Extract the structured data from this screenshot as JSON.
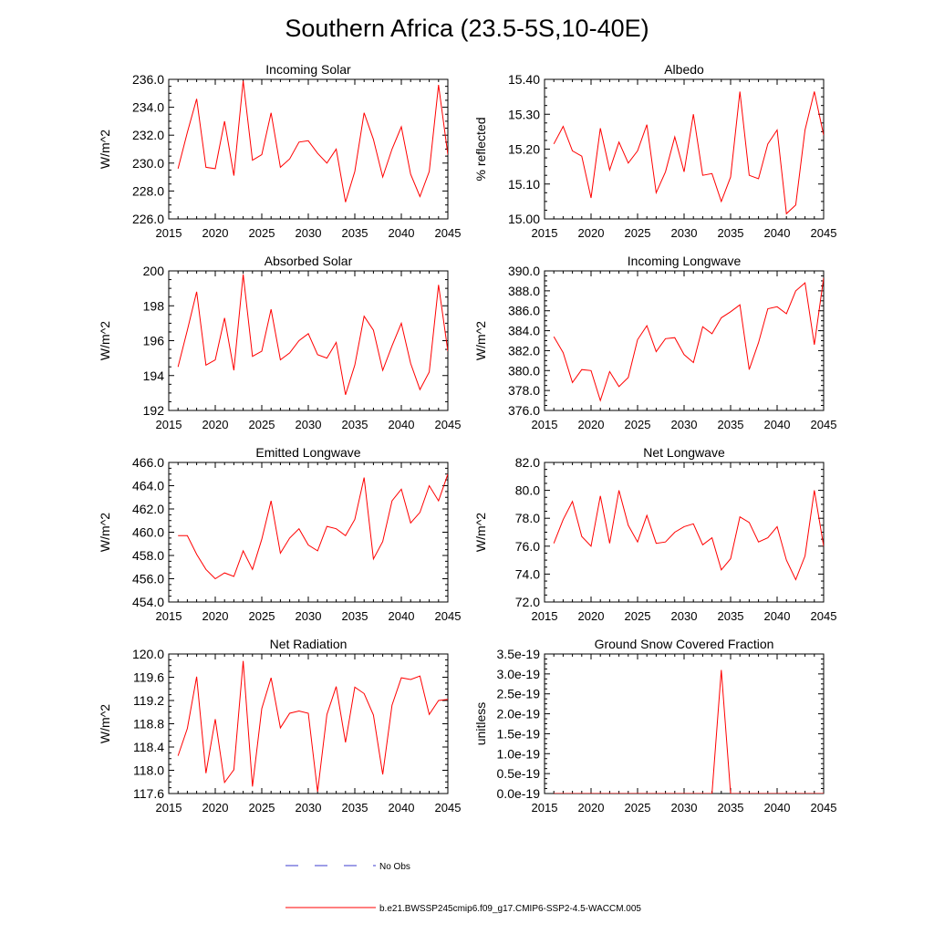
{
  "title": "Southern Africa (23.5-5S,10-40E)",
  "colors": {
    "model": "#ff0000",
    "obs": "#3b3bcf",
    "axis": "#000000"
  },
  "legend": {
    "obs_label": "No Obs",
    "model_label": "b.e21.BWSSP245cmip6.f09_g17.CMIP6-SSP2-4.5-WACCM.005"
  },
  "chart_data": [
    {
      "type": "line",
      "title": "Incoming Solar",
      "ylabel": "W/m^2",
      "xlim": [
        2015,
        2045
      ],
      "ylim": [
        226,
        236
      ],
      "xticks": [
        2015,
        2020,
        2025,
        2030,
        2035,
        2040,
        2045
      ],
      "yticks": [
        226,
        228,
        230,
        232,
        234,
        236
      ],
      "ytick_labels": [
        "226.0",
        "228.0",
        "230.0",
        "232.0",
        "234.0",
        "236.0"
      ],
      "x": [
        2016,
        2017,
        2018,
        2019,
        2020,
        2021,
        2022,
        2023,
        2024,
        2025,
        2026,
        2027,
        2028,
        2029,
        2030,
        2031,
        2032,
        2033,
        2034,
        2035,
        2036,
        2037,
        2038,
        2039,
        2040,
        2041,
        2042,
        2043,
        2044,
        2045
      ],
      "series": [
        {
          "name": "b.e21.BWSSP245cmip6.f09_g17.CMIP6-SSP2-4.5-WACCM.005",
          "values": [
            229.6,
            232.2,
            234.6,
            229.7,
            229.6,
            233.0,
            229.1,
            235.9,
            230.2,
            230.6,
            233.6,
            229.7,
            230.3,
            231.5,
            231.6,
            230.7,
            230.0,
            231.0,
            227.2,
            229.4,
            233.6,
            231.7,
            229.0,
            231.0,
            232.6,
            229.2,
            227.6,
            229.4,
            235.6,
            230.6
          ]
        }
      ]
    },
    {
      "type": "line",
      "title": "Albedo",
      "ylabel": "% reflected",
      "xlim": [
        2015,
        2045
      ],
      "ylim": [
        15.0,
        15.4
      ],
      "xticks": [
        2015,
        2020,
        2025,
        2030,
        2035,
        2040,
        2045
      ],
      "yticks": [
        15.0,
        15.1,
        15.2,
        15.3,
        15.4
      ],
      "ytick_labels": [
        "15.00",
        "15.10",
        "15.20",
        "15.30",
        "15.40"
      ],
      "x": [
        2016,
        2017,
        2018,
        2019,
        2020,
        2021,
        2022,
        2023,
        2024,
        2025,
        2026,
        2027,
        2028,
        2029,
        2030,
        2031,
        2032,
        2033,
        2034,
        2035,
        2036,
        2037,
        2038,
        2039,
        2040,
        2041,
        2042,
        2043,
        2044,
        2045
      ],
      "series": [
        {
          "name": "b.e21.BWSSP245cmip6.f09_g17.CMIP6-SSP2-4.5-WACCM.005",
          "values": [
            15.215,
            15.265,
            15.195,
            15.18,
            15.06,
            15.26,
            15.14,
            15.22,
            15.16,
            15.195,
            15.27,
            15.075,
            15.135,
            15.235,
            15.135,
            15.3,
            15.125,
            15.13,
            15.05,
            15.12,
            15.365,
            15.125,
            15.115,
            15.215,
            15.255,
            15.015,
            15.04,
            15.255,
            15.365,
            15.24
          ]
        }
      ]
    },
    {
      "type": "line",
      "title": "Absorbed Solar",
      "ylabel": "W/m^2",
      "xlim": [
        2015,
        2045
      ],
      "ylim": [
        192,
        200
      ],
      "xticks": [
        2015,
        2020,
        2025,
        2030,
        2035,
        2040,
        2045
      ],
      "yticks": [
        192,
        194,
        196,
        198,
        200
      ],
      "ytick_labels": [
        "192",
        "194",
        "196",
        "198",
        "200"
      ],
      "x": [
        2016,
        2017,
        2018,
        2019,
        2020,
        2021,
        2022,
        2023,
        2024,
        2025,
        2026,
        2027,
        2028,
        2029,
        2030,
        2031,
        2032,
        2033,
        2034,
        2035,
        2036,
        2037,
        2038,
        2039,
        2040,
        2041,
        2042,
        2043,
        2044,
        2045
      ],
      "series": [
        {
          "name": "b.e21.BWSSP245cmip6.f09_g17.CMIP6-SSP2-4.5-WACCM.005",
          "values": [
            194.5,
            196.6,
            198.8,
            194.6,
            194.9,
            197.3,
            194.3,
            199.8,
            195.1,
            195.4,
            197.8,
            194.9,
            195.3,
            196.0,
            196.4,
            195.2,
            195.0,
            195.9,
            192.9,
            194.6,
            197.4,
            196.6,
            194.3,
            195.7,
            197.0,
            194.7,
            193.2,
            194.2,
            199.2,
            195.4
          ]
        }
      ]
    },
    {
      "type": "line",
      "title": "Incoming Longwave",
      "ylabel": "W/m^2",
      "xlim": [
        2015,
        2045
      ],
      "ylim": [
        376,
        390
      ],
      "xticks": [
        2015,
        2020,
        2025,
        2030,
        2035,
        2040,
        2045
      ],
      "yticks": [
        376,
        378,
        380,
        382,
        384,
        386,
        388,
        390
      ],
      "ytick_labels": [
        "376.0",
        "378.0",
        "380.0",
        "382.0",
        "384.0",
        "386.0",
        "388.0",
        "390.0"
      ],
      "x": [
        2016,
        2017,
        2018,
        2019,
        2020,
        2021,
        2022,
        2023,
        2024,
        2025,
        2026,
        2027,
        2028,
        2029,
        2030,
        2031,
        2032,
        2033,
        2034,
        2035,
        2036,
        2037,
        2038,
        2039,
        2040,
        2041,
        2042,
        2043,
        2044,
        2045
      ],
      "series": [
        {
          "name": "b.e21.BWSSP245cmip6.f09_g17.CMIP6-SSP2-4.5-WACCM.005",
          "values": [
            383.4,
            381.8,
            378.8,
            380.1,
            380.0,
            377.0,
            379.9,
            378.4,
            379.3,
            383.1,
            384.5,
            381.9,
            383.2,
            383.3,
            381.6,
            380.8,
            384.4,
            383.7,
            385.3,
            385.9,
            386.6,
            380.1,
            382.8,
            386.2,
            386.4,
            385.7,
            388.0,
            388.8,
            382.6,
            389.3
          ]
        }
      ]
    },
    {
      "type": "line",
      "title": "Emitted Longwave",
      "ylabel": "W/m^2",
      "xlim": [
        2015,
        2045
      ],
      "ylim": [
        454,
        466
      ],
      "xticks": [
        2015,
        2020,
        2025,
        2030,
        2035,
        2040,
        2045
      ],
      "yticks": [
        454,
        456,
        458,
        460,
        462,
        464,
        466
      ],
      "ytick_labels": [
        "454.0",
        "456.0",
        "458.0",
        "460.0",
        "462.0",
        "464.0",
        "466.0"
      ],
      "x": [
        2016,
        2017,
        2018,
        2019,
        2020,
        2021,
        2022,
        2023,
        2024,
        2025,
        2026,
        2027,
        2028,
        2029,
        2030,
        2031,
        2032,
        2033,
        2034,
        2035,
        2036,
        2037,
        2038,
        2039,
        2040,
        2041,
        2042,
        2043,
        2044,
        2045
      ],
      "series": [
        {
          "name": "b.e21.BWSSP245cmip6.f09_g17.CMIP6-SSP2-4.5-WACCM.005",
          "values": [
            459.7,
            459.7,
            458.1,
            456.8,
            456.0,
            456.5,
            456.2,
            458.4,
            456.8,
            459.4,
            462.7,
            458.2,
            459.5,
            460.3,
            458.9,
            458.4,
            460.5,
            460.3,
            459.7,
            461.1,
            464.7,
            457.7,
            459.2,
            462.7,
            463.7,
            460.8,
            461.7,
            464.0,
            462.7,
            465.0
          ]
        }
      ]
    },
    {
      "type": "line",
      "title": "Net Longwave",
      "ylabel": "W/m^2",
      "xlim": [
        2015,
        2045
      ],
      "ylim": [
        72,
        82
      ],
      "xticks": [
        2015,
        2020,
        2025,
        2030,
        2035,
        2040,
        2045
      ],
      "yticks": [
        72,
        74,
        76,
        78,
        80,
        82
      ],
      "ytick_labels": [
        "72.0",
        "74.0",
        "76.0",
        "78.0",
        "80.0",
        "82.0"
      ],
      "x": [
        2016,
        2017,
        2018,
        2019,
        2020,
        2021,
        2022,
        2023,
        2024,
        2025,
        2026,
        2027,
        2028,
        2029,
        2030,
        2031,
        2032,
        2033,
        2034,
        2035,
        2036,
        2037,
        2038,
        2039,
        2040,
        2041,
        2042,
        2043,
        2044,
        2045
      ],
      "series": [
        {
          "name": "b.e21.BWSSP245cmip6.f09_g17.CMIP6-SSP2-4.5-WACCM.005",
          "values": [
            76.2,
            77.9,
            79.2,
            76.7,
            76.0,
            79.6,
            76.2,
            80.0,
            77.5,
            76.3,
            78.2,
            76.2,
            76.3,
            77.0,
            77.4,
            77.6,
            76.1,
            76.6,
            74.3,
            75.1,
            78.1,
            77.7,
            76.3,
            76.6,
            77.4,
            75.0,
            73.6,
            75.3,
            80.0,
            76.0
          ]
        }
      ]
    },
    {
      "type": "line",
      "title": "Net Radiation",
      "ylabel": "W/m^2",
      "xlim": [
        2015,
        2045
      ],
      "ylim": [
        117.6,
        120.0
      ],
      "xticks": [
        2015,
        2020,
        2025,
        2030,
        2035,
        2040,
        2045
      ],
      "yticks": [
        117.6,
        118.0,
        118.4,
        118.8,
        119.2,
        119.6,
        120.0
      ],
      "ytick_labels": [
        "117.6",
        "118.0",
        "118.4",
        "118.8",
        "119.2",
        "119.6",
        "120.0"
      ],
      "x": [
        2016,
        2017,
        2018,
        2019,
        2020,
        2021,
        2022,
        2023,
        2024,
        2025,
        2026,
        2027,
        2028,
        2029,
        2030,
        2031,
        2032,
        2033,
        2034,
        2035,
        2036,
        2037,
        2038,
        2039,
        2040,
        2041,
        2042,
        2043,
        2044,
        2045
      ],
      "series": [
        {
          "name": "b.e21.BWSSP245cmip6.f09_g17.CMIP6-SSP2-4.5-WACCM.005",
          "values": [
            118.25,
            118.72,
            119.61,
            117.95,
            118.88,
            117.79,
            118.01,
            119.88,
            117.72,
            119.06,
            119.59,
            118.73,
            118.98,
            119.02,
            118.98,
            117.63,
            118.96,
            119.44,
            118.48,
            119.43,
            119.32,
            118.95,
            117.93,
            119.12,
            119.59,
            119.56,
            119.62,
            118.96,
            119.2,
            119.22
          ]
        }
      ]
    },
    {
      "type": "line",
      "title": "Ground Snow Covered Fraction",
      "ylabel": "unitless",
      "xlim": [
        2015,
        2045
      ],
      "ylim": [
        0,
        3.5e-19
      ],
      "xticks": [
        2015,
        2020,
        2025,
        2030,
        2035,
        2040,
        2045
      ],
      "yticks": [
        0,
        5e-20,
        1e-19,
        1.5e-19,
        2e-19,
        2.5e-19,
        3e-19,
        3.5e-19
      ],
      "ytick_labels": [
        "0.0e-19",
        "0.5e-19",
        "1.0e-19",
        "1.5e-19",
        "2.0e-19",
        "2.5e-19",
        "3.0e-19",
        "3.5e-19"
      ],
      "x": [
        2016,
        2017,
        2018,
        2019,
        2020,
        2021,
        2022,
        2023,
        2024,
        2025,
        2026,
        2027,
        2028,
        2029,
        2030,
        2031,
        2032,
        2033,
        2034,
        2035,
        2036,
        2037,
        2038,
        2039,
        2040,
        2041,
        2042,
        2043,
        2044,
        2045
      ],
      "series": [
        {
          "name": "b.e21.BWSSP245cmip6.f09_g17.CMIP6-SSP2-4.5-WACCM.005",
          "values": [
            0,
            0,
            0,
            0,
            0,
            0,
            0,
            0,
            0,
            0,
            0,
            0,
            0,
            0,
            0,
            0,
            0,
            0,
            3.1e-19,
            0,
            0,
            0,
            0,
            0,
            0,
            0,
            0,
            0,
            0,
            0
          ]
        }
      ]
    }
  ]
}
